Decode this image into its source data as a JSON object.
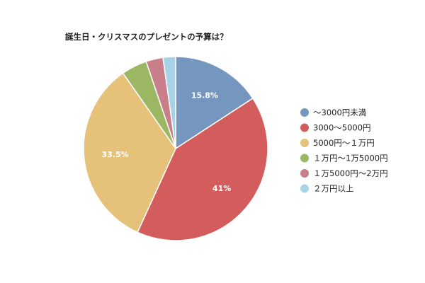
{
  "chart_data": {
    "type": "pie",
    "title": "誕生日・クリスマスのプレゼントの予算は？",
    "slices": [
      {
        "label": "～3000円未満",
        "value": 15.8,
        "color": "#7596be",
        "data_label": "15.8%"
      },
      {
        "label": "3000～5000円",
        "value": 41,
        "color": "#d35c5c",
        "data_label": "41%"
      },
      {
        "label": "5000円～１万円",
        "value": 33.5,
        "color": "#e6c17a",
        "data_label": "33.5%"
      },
      {
        "label": "１万円～1万5000円",
        "value": 4.5,
        "color": "#9bb764",
        "data_label": ""
      },
      {
        "label": "１万5000円～2万円",
        "value": 3.0,
        "color": "#c97f8a",
        "data_label": ""
      },
      {
        "label": "２万円以上",
        "value": 2.2,
        "color": "#a6d4e6",
        "data_label": ""
      }
    ],
    "legend_position": "right"
  }
}
